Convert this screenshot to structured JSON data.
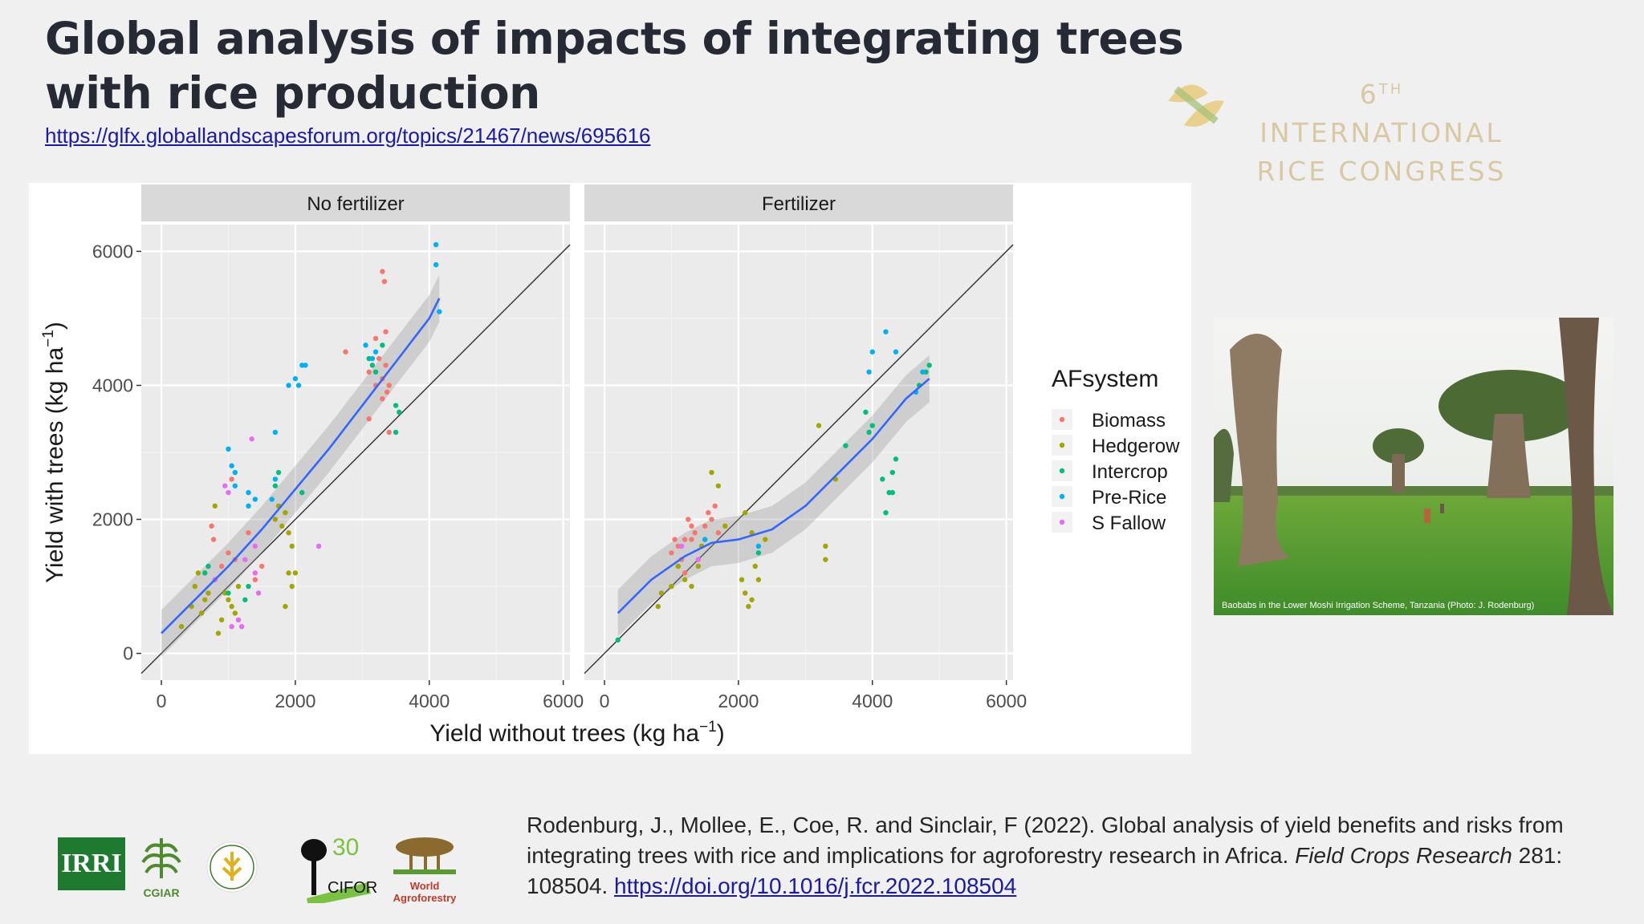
{
  "slide": {
    "title": "Global analysis of impacts of integrating trees with rice production",
    "link": "https://glfx.globallandscapesforum.org/topics/21467/news/695616"
  },
  "congress": {
    "ordinal": "6",
    "ordinal_suffix": "TH",
    "line1_rest": "INTERNATIONAL",
    "line2": "RICE CONGRESS"
  },
  "photo": {
    "caption": "Baobabs in the Lower Moshi Irrigation Scheme, Tanzania (Photo: J. Rodenburg)"
  },
  "citation": {
    "text": "Rodenburg, J., Mollee, E., Coe, R. and Sinclair, F (2022). Global analysis of yield benefits and risks from integrating trees with rice and implications for agroforestry research in Africa.",
    "journal": "Field Crops Research",
    "volume": "281: 108504.",
    "doi": "https://doi.org/10.1016/j.fcr.2022.108504"
  },
  "logos": {
    "irri": "IRRI",
    "cgiar": "CGIAR",
    "cifor_years": "30",
    "cifor": "CIFOR",
    "wa1": "World",
    "wa2": "Agroforestry"
  },
  "colors": {
    "Biomass": "#f8766d",
    "Hedgerow": "#a3a500",
    "Intercrop": "#00bf7d",
    "Pre-Rice": "#00b0f6",
    "S Fallow": "#e76bf3",
    "smooth": "#3366ff"
  },
  "chart_data": {
    "type": "scatter",
    "xlabel": "Yield without trees (kg ha",
    "xlabel_sup": "−1",
    "ylabel": "Yield with trees (kg ha",
    "ylabel_sup": "−1",
    "xlim": [
      -300,
      6100
    ],
    "ylim": [
      -400,
      6400
    ],
    "xticks": [
      0,
      2000,
      4000,
      6000
    ],
    "yticks": [
      0,
      2000,
      4000,
      6000
    ],
    "xtick_labels": [
      "0",
      "2000",
      "4000",
      "6000"
    ],
    "ytick_labels": [
      "0",
      "2000",
      "4000",
      "6000"
    ],
    "legend_title": "AFsystem",
    "legend": [
      "Biomass",
      "Hedgerow",
      "Intercrop",
      "Pre-Rice",
      "S Fallow"
    ],
    "legend_position": "right",
    "grid": true,
    "reference_line": "y = x",
    "panels": [
      {
        "label": "No fertilizer",
        "points": {
          "Biomass": [
            [
              750,
              1900
            ],
            [
              780,
              1700
            ],
            [
              900,
              1300
            ],
            [
              1000,
              1500
            ],
            [
              1050,
              2600
            ],
            [
              1100,
              1400
            ],
            [
              1300,
              1800
            ],
            [
              1400,
              1100
            ],
            [
              1500,
              1300
            ],
            [
              2750,
              4500
            ],
            [
              3100,
              3500
            ],
            [
              3300,
              5700
            ],
            [
              3330,
              5550
            ],
            [
              3350,
              4800
            ],
            [
              3200,
              4700
            ],
            [
              3300,
              4100
            ],
            [
              3350,
              4300
            ],
            [
              3370,
              3900
            ],
            [
              3400,
              4000
            ],
            [
              3300,
              3800
            ],
            [
              3400,
              3300
            ],
            [
              3200,
              4000
            ],
            [
              3100,
              4200
            ],
            [
              3250,
              4400
            ]
          ],
          "Hedgerow": [
            [
              300,
              400
            ],
            [
              450,
              700
            ],
            [
              500,
              1000
            ],
            [
              550,
              1200
            ],
            [
              600,
              600
            ],
            [
              650,
              800
            ],
            [
              700,
              900
            ],
            [
              800,
              1100
            ],
            [
              850,
              300
            ],
            [
              900,
              500
            ],
            [
              950,
              900
            ],
            [
              1000,
              800
            ],
            [
              1050,
              700
            ],
            [
              1100,
              600
            ],
            [
              1150,
              1000
            ],
            [
              800,
              2200
            ],
            [
              1800,
              1900
            ],
            [
              1850,
              2100
            ],
            [
              1900,
              1800
            ],
            [
              1950,
              1600
            ],
            [
              1900,
              1200
            ],
            [
              1950,
              1000
            ],
            [
              1850,
              700
            ],
            [
              2000,
              1200
            ],
            [
              1700,
              2000
            ],
            [
              1750,
              2200
            ]
          ],
          "Intercrop": [
            [
              650,
              1200
            ],
            [
              700,
              1300
            ],
            [
              1000,
              900
            ],
            [
              1250,
              800
            ],
            [
              1300,
              1000
            ],
            [
              1700,
              2500
            ],
            [
              1750,
              2700
            ],
            [
              2100,
              2400
            ],
            [
              3100,
              4400
            ],
            [
              3150,
              4300
            ],
            [
              3200,
              4200
            ],
            [
              3300,
              4600
            ],
            [
              3500,
              3700
            ],
            [
              3550,
              3600
            ],
            [
              3500,
              3300
            ]
          ],
          "Pre-Rice": [
            [
              1000,
              3050
            ],
            [
              1050,
              2800
            ],
            [
              1100,
              2700
            ],
            [
              1100,
              2500
            ],
            [
              1300,
              2400
            ],
            [
              1300,
              2200
            ],
            [
              1400,
              2300
            ],
            [
              1650,
              2300
            ],
            [
              1700,
              2600
            ],
            [
              1700,
              3300
            ],
            [
              1900,
              4000
            ],
            [
              2000,
              4100
            ],
            [
              2050,
              4000
            ],
            [
              2100,
              4300
            ],
            [
              2150,
              4300
            ],
            [
              3050,
              4600
            ],
            [
              3200,
              4500
            ],
            [
              3150,
              4400
            ],
            [
              4100,
              6100
            ],
            [
              4100,
              5800
            ],
            [
              4150,
              5100
            ]
          ],
          "S Fallow": [
            [
              800,
              1100
            ],
            [
              950,
              2500
            ],
            [
              1000,
              2400
            ],
            [
              1050,
              400
            ],
            [
              1150,
              500
            ],
            [
              1200,
              400
            ],
            [
              1250,
              1400
            ],
            [
              1350,
              3200
            ],
            [
              1400,
              1600
            ],
            [
              1400,
              1200
            ],
            [
              1450,
              900
            ],
            [
              2350,
              1600
            ]
          ]
        },
        "smooth": [
          [
            0,
            300
          ],
          [
            500,
            800
          ],
          [
            1000,
            1300
          ],
          [
            1500,
            1850
          ],
          [
            2000,
            2450
          ],
          [
            2500,
            3050
          ],
          [
            3000,
            3700
          ],
          [
            3500,
            4350
          ],
          [
            4000,
            5000
          ],
          [
            4150,
            5300
          ]
        ]
      },
      {
        "label": "Fertilizer",
        "points": {
          "Biomass": [
            [
              1000,
              1500
            ],
            [
              1050,
              1700
            ],
            [
              1100,
              1600
            ],
            [
              1150,
              1400
            ],
            [
              1200,
              1700
            ],
            [
              1250,
              2000
            ],
            [
              1300,
              1900
            ],
            [
              1350,
              1800
            ],
            [
              1500,
              1900
            ],
            [
              1550,
              2100
            ],
            [
              1600,
              2000
            ],
            [
              1650,
              2200
            ],
            [
              1700,
              1800
            ],
            [
              1100,
              1300
            ],
            [
              1200,
              1200
            ],
            [
              1300,
              1700
            ]
          ],
          "Hedgerow": [
            [
              800,
              700
            ],
            [
              850,
              900
            ],
            [
              1000,
              1000
            ],
            [
              1100,
              1300
            ],
            [
              1200,
              1100
            ],
            [
              1300,
              1000
            ],
            [
              1400,
              1300
            ],
            [
              1450,
              1600
            ],
            [
              1500,
              1700
            ],
            [
              1600,
              2700
            ],
            [
              1700,
              2500
            ],
            [
              1800,
              1900
            ],
            [
              2050,
              1100
            ],
            [
              2100,
              900
            ],
            [
              2150,
              700
            ],
            [
              2200,
              800
            ],
            [
              2250,
              1300
            ],
            [
              2300,
              1100
            ],
            [
              2400,
              1700
            ],
            [
              2100,
              2100
            ],
            [
              2200,
              1800
            ],
            [
              3200,
              3400
            ],
            [
              3300,
              1600
            ],
            [
              3300,
              1400
            ],
            [
              3450,
              2600
            ]
          ],
          "Intercrop": [
            [
              200,
              200
            ],
            [
              2300,
              1500
            ],
            [
              3600,
              3100
            ],
            [
              3900,
              3600
            ],
            [
              3950,
              3300
            ],
            [
              4000,
              3400
            ],
            [
              4150,
              2600
            ],
            [
              4200,
              2100
            ],
            [
              4250,
              2400
            ],
            [
              4300,
              2700
            ],
            [
              4350,
              2900
            ],
            [
              4300,
              2400
            ],
            [
              4700,
              4000
            ],
            [
              4800,
              4200
            ],
            [
              4850,
              4300
            ]
          ],
          "Pre-Rice": [
            [
              1500,
              1700
            ],
            [
              2300,
              1600
            ],
            [
              3950,
              4200
            ],
            [
              4000,
              4500
            ],
            [
              4200,
              4800
            ],
            [
              4350,
              4500
            ],
            [
              4650,
              3900
            ],
            [
              4750,
              4200
            ]
          ],
          "S Fallow": [
            [
              1150,
              1600
            ],
            [
              1400,
              1400
            ]
          ]
        },
        "smooth": [
          [
            200,
            600
          ],
          [
            700,
            1100
          ],
          [
            1200,
            1450
          ],
          [
            1600,
            1650
          ],
          [
            2000,
            1700
          ],
          [
            2500,
            1850
          ],
          [
            3000,
            2200
          ],
          [
            3500,
            2700
          ],
          [
            4000,
            3200
          ],
          [
            4500,
            3800
          ],
          [
            4850,
            4100
          ]
        ]
      }
    ]
  }
}
